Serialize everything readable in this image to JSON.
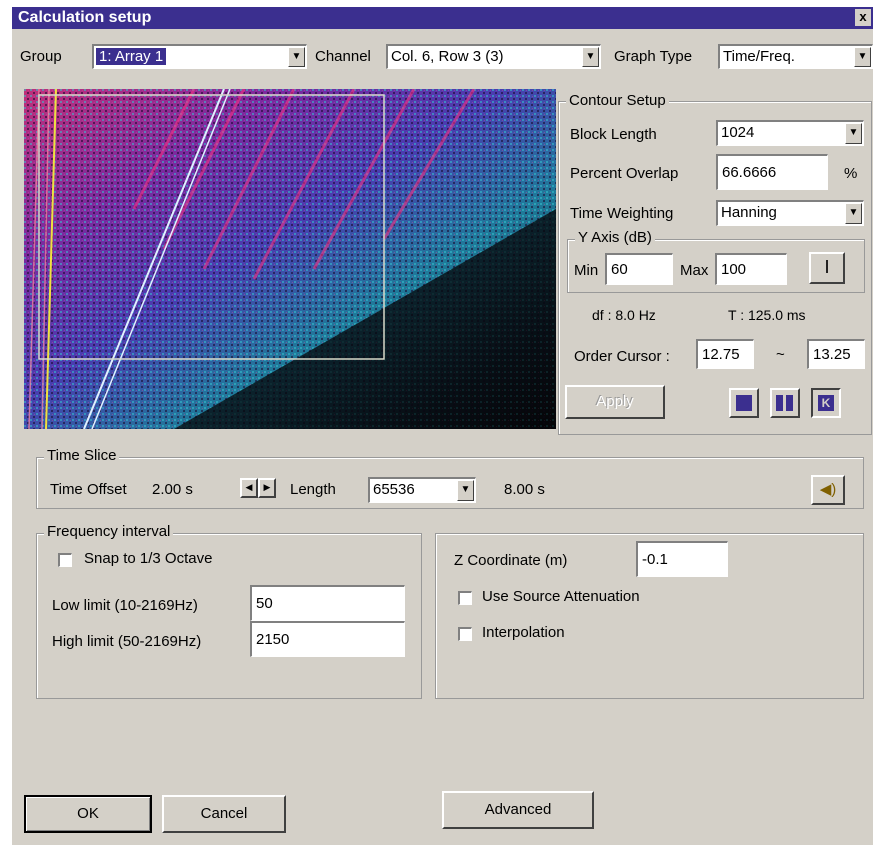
{
  "window": {
    "title": "Calculation setup",
    "close_glyph": "x"
  },
  "top": {
    "group_label": "Group",
    "group_value": "1: Array 1",
    "channel_label": "Channel",
    "channel_value": "Col. 6, Row 3 (3)",
    "graph_type_label": "Graph Type",
    "graph_type_value": "Time/Freq."
  },
  "contour": {
    "title": "Contour Setup",
    "block_length_label": "Block Length",
    "block_length_value": "1024",
    "percent_overlap_label": "Percent Overlap",
    "percent_overlap_value": "66.6666",
    "percent_sign": "%",
    "time_weighting_label": "Time Weighting",
    "time_weighting_value": "Hanning",
    "yaxis_title": "Y Axis (dB)",
    "min_label": "Min",
    "min_value": "60",
    "max_label": "Max",
    "max_value": "100",
    "df_text": "df :  8.0 Hz",
    "t_text": "T :   125.0 ms",
    "order_cursor_label": "Order Cursor :",
    "order_cursor_from": "12.75",
    "order_cursor_sep": "~",
    "order_cursor_to": "13.25",
    "apply_label": "Apply"
  },
  "time_slice": {
    "title": "Time Slice",
    "offset_label": "Time Offset",
    "offset_value": "2.00 s",
    "length_label": "Length",
    "length_value": "65536",
    "duration": "8.00 s"
  },
  "frequency": {
    "title": "Frequency interval",
    "snap_label": "Snap to 1/3 Octave",
    "snap_checked": false,
    "low_label": "Low limit (10-2169Hz)",
    "low_value": "50",
    "high_label": "High limit (50-2169Hz)",
    "high_value": "2150"
  },
  "zcoord": {
    "label": "Z Coordinate (m)",
    "value": "-0.1",
    "source_atten_label": "Use Source Attenuation",
    "source_atten_checked": false,
    "interp_label": "Interpolation",
    "interp_checked": false
  },
  "buttons": {
    "ok": "OK",
    "cancel": "Cancel",
    "advanced": "Advanced"
  },
  "icons": {
    "dropdown": "dropdown-arrow-icon",
    "cursor_tool": "i-beam-cursor-icon",
    "speaker": "speaker-icon",
    "view_buttons": [
      "single-bar-view-icon",
      "double-bar-view-icon",
      "order-view-icon"
    ]
  },
  "colors": {
    "title_bar": "#3b2f8f",
    "selection": "#3b2f8f",
    "dialog_face": "#d4d0c8"
  }
}
